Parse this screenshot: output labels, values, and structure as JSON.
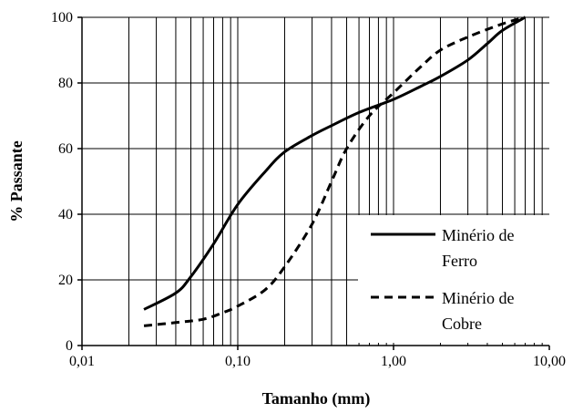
{
  "chart_data": {
    "type": "line",
    "title": "",
    "xlabel": "Tamanho (mm)",
    "ylabel": "% Passante",
    "x_scale": "log",
    "xlim": [
      0.01,
      10
    ],
    "ylim": [
      0,
      100
    ],
    "x_ticks": [
      0.01,
      0.1,
      1,
      10
    ],
    "x_tick_labels": [
      "0,01",
      "0,10",
      "1,00",
      "10,00"
    ],
    "y_ticks": [
      0,
      20,
      40,
      60,
      80,
      100
    ],
    "y_tick_labels": [
      "0",
      "20",
      "40",
      "60",
      "80",
      "100"
    ],
    "grid": true,
    "legend_position": "lower-right",
    "series": [
      {
        "name_lines": [
          "Minério de",
          "Ferro"
        ],
        "style": "solid",
        "color": "#000000",
        "x": [
          0.025,
          0.04,
          0.05,
          0.07,
          0.1,
          0.15,
          0.2,
          0.3,
          0.4,
          0.6,
          1.0,
          1.5,
          2.0,
          3.0,
          4.0,
          5.0,
          7.0
        ],
        "y": [
          11,
          16,
          21,
          31,
          43,
          53,
          59,
          64,
          67,
          71,
          75,
          79,
          82,
          87,
          92,
          96,
          100
        ]
      },
      {
        "name_lines": [
          "Minério de",
          "Cobre"
        ],
        "style": "dashed",
        "color": "#000000",
        "x": [
          0.025,
          0.04,
          0.06,
          0.08,
          0.1,
          0.15,
          0.2,
          0.3,
          0.4,
          0.5,
          0.7,
          1.0,
          1.5,
          2.0,
          3.0,
          5.0,
          7.0
        ],
        "y": [
          6,
          7,
          8,
          10,
          12,
          17,
          24,
          37,
          50,
          60,
          70,
          77,
          85,
          90,
          94,
          98,
          100
        ]
      }
    ]
  }
}
